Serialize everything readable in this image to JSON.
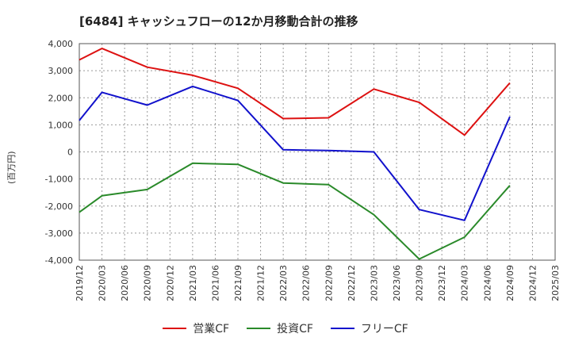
{
  "chart_data": {
    "type": "line",
    "title": "[6484]  キャッシュフローの12か月移動合計の推移",
    "ylabel": "(百万円)",
    "ylim": [
      -4000,
      4000
    ],
    "yticks": [
      4000,
      3000,
      2000,
      1000,
      0,
      -1000,
      -2000,
      -3000,
      -4000
    ],
    "ytick_labels": [
      "4,000",
      "3,000",
      "2,000",
      "1,000",
      "0",
      "-1,000",
      "-2,000",
      "-3,000",
      "-4,000"
    ],
    "categories": [
      "2019/12",
      "2020/03",
      "2020/06",
      "2020/09",
      "2020/12",
      "2021/03",
      "2021/06",
      "2021/09",
      "2021/12",
      "2022/03",
      "2022/06",
      "2022/09",
      "2022/12",
      "2023/03",
      "2023/06",
      "2023/09",
      "2023/12",
      "2024/03",
      "2024/06",
      "2024/09",
      "2024/12",
      "2025/03"
    ],
    "grid": true,
    "legend_position": "bottom",
    "series": [
      {
        "name": "営業CF",
        "color": "#dd1111",
        "values": [
          3400,
          3820,
          null,
          3130,
          null,
          2830,
          null,
          2350,
          null,
          1230,
          null,
          1260,
          null,
          2320,
          null,
          1830,
          null,
          620,
          null,
          2550,
          null,
          null
        ]
      },
      {
        "name": "投資CF",
        "color": "#2a8a2a",
        "values": [
          -2230,
          -1620,
          null,
          -1390,
          null,
          -420,
          null,
          -460,
          null,
          -1150,
          null,
          -1210,
          null,
          -2320,
          null,
          -3960,
          null,
          -3150,
          null,
          -1240,
          null,
          null
        ]
      },
      {
        "name": "フリーCF",
        "color": "#1111cc",
        "values": [
          1160,
          2200,
          null,
          1730,
          null,
          2420,
          null,
          1900,
          null,
          80,
          null,
          50,
          null,
          0,
          null,
          -2130,
          null,
          -2530,
          null,
          1300,
          null,
          null
        ]
      }
    ]
  }
}
